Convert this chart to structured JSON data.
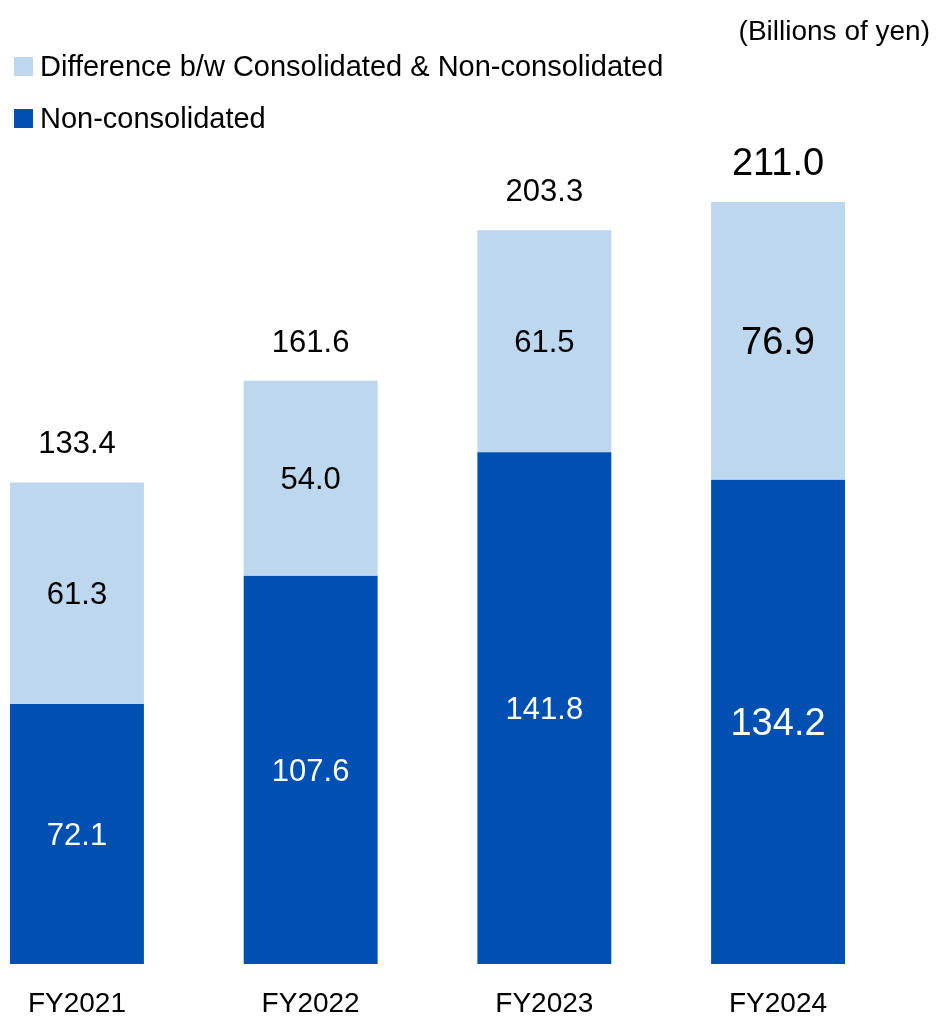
{
  "chart_data": {
    "type": "bar",
    "stacked": true,
    "categories": [
      "FY2021",
      "FY2022",
      "FY2023",
      "FY2024"
    ],
    "series": [
      {
        "name": "Non-consolidated",
        "color": "#0050b3",
        "values": [
          72.1,
          107.6,
          141.8,
          134.2
        ],
        "value_labels": [
          "72.1",
          "107.6",
          "141.8",
          "134.2"
        ]
      },
      {
        "name": "Difference b/w Consolidated & Non-consolidated",
        "color": "#bdd7ee",
        "values": [
          61.3,
          54.0,
          61.5,
          76.9
        ],
        "value_labels": [
          "61.3",
          "54.0",
          "61.5",
          "76.9"
        ]
      }
    ],
    "totals": [
      "133.4",
      "161.6",
      "203.3",
      "211.0"
    ],
    "annotations": [
      "(Billions of yen)"
    ],
    "legend": "top left",
    "tick_labels": "x"
  }
}
